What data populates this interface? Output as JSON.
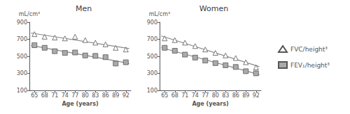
{
  "chart_data": [
    {
      "type": "scatter",
      "title": "Men",
      "x_label": "Age (years)",
      "y_label": "mL/cm³",
      "x": [
        65,
        68,
        71,
        74,
        77,
        80,
        83,
        86,
        89,
        92
      ],
      "xlim": [
        63.5,
        93.5
      ],
      "xticks": [
        65,
        68,
        71,
        74,
        77,
        80,
        83,
        86,
        89,
        92
      ],
      "ylim": [
        100,
        900
      ],
      "yticks": [
        100,
        300,
        500,
        700,
        900
      ],
      "series": [
        {
          "name": "FVC/height³",
          "type": "scatter",
          "marker": "triangle",
          "color": "#ffffff",
          "values": [
            760,
            730,
            720,
            710,
            730,
            690,
            660,
            640,
            600,
            580
          ]
        },
        {
          "name": "FEV₁/height³",
          "type": "scatter",
          "marker": "square",
          "color": "#aaaaaa",
          "values": [
            630,
            600,
            560,
            540,
            545,
            510,
            505,
            490,
            415,
            430
          ]
        },
        {
          "type": "line",
          "color": "#888888",
          "x": [
            64,
            93
          ],
          "values": [
            773.3939394,
            590.6060606
          ]
        },
        {
          "type": "line",
          "color": "#888888",
          "x": [
            64,
            93
          ],
          "values": [
            627.5151515,
            417.4848485
          ]
        }
      ]
    },
    {
      "type": "scatter",
      "title": "Women",
      "x_label": "Age (years)",
      "y_label": "mL/cm³",
      "x": [
        65,
        68,
        71,
        74,
        77,
        80,
        83,
        86,
        89,
        92
      ],
      "xlim": [
        63.5,
        93.5
      ],
      "xticks": [
        65,
        68,
        71,
        74,
        77,
        80,
        83,
        86,
        89,
        92
      ],
      "ylim": [
        100,
        900
      ],
      "yticks": [
        100,
        300,
        500,
        700,
        900
      ],
      "legend": "right",
      "series": [
        {
          "name": "FVC/height³",
          "type": "scatter",
          "marker": "triangle",
          "color": "#ffffff",
          "values": [
            710,
            690,
            660,
            620,
            580,
            540,
            510,
            480,
            430,
            370
          ]
        },
        {
          "name": "FEV₁/height³",
          "type": "scatter",
          "marker": "square",
          "color": "#aaaaaa",
          "values": [
            600,
            565,
            520,
            485,
            450,
            420,
            395,
            375,
            325,
            300
          ]
        },
        {
          "type": "line",
          "color": "#888888",
          "x": [
            64,
            93
          ],
          "values": [
            739.1515152,
            378.8484848
          ]
        },
        {
          "type": "line",
          "color": "#888888",
          "x": [
            64,
            93
          ],
          "values": [
            601.8282828,
            285.1717172
          ]
        }
      ]
    }
  ]
}
